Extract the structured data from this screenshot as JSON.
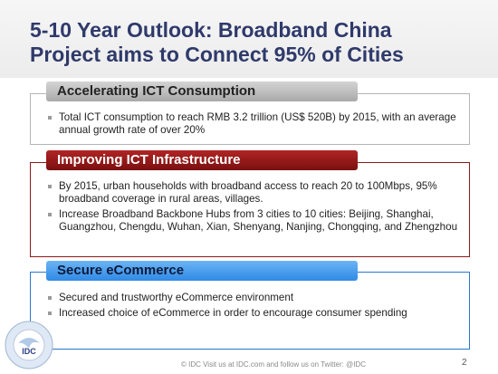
{
  "slide": {
    "title_line1": "5-10 Year Outlook: Broadband China",
    "title_line2": "Project aims to Connect 95% of Cities"
  },
  "sections": [
    {
      "heading": "Accelerating ICT Consumption",
      "bullets": [
        "Total ICT consumption to reach RMB 3.2 trillion (US$ 520B) by 2015, with an average annual growth rate of over 20%"
      ]
    },
    {
      "heading": "Improving ICT Infrastructure",
      "bullets": [
        "By 2015, urban households with broadband access to reach 20 to 100Mbps,  95% broadband coverage in rural areas, villages.",
        "Increase Broadband Backbone Hubs from 3 cities to 10 cities: Beijing, Shanghai, Guangzhou, Chengdu, Wuhan, Xian, Shenyang, Nanjing, Chongqing, and Zhengzhou"
      ]
    },
    {
      "heading": "Secure eCommerce",
      "bullets": [
        "Secured and trustworthy eCommerce environment",
        "Increased choice of eCommerce in order to encourage consumer spending"
      ]
    }
  ],
  "footer": {
    "text": "© IDC   Visit us at IDC.com and follow us on Twitter: @IDC",
    "page_number": "2",
    "logo_text": "IDC",
    "logo_ring_text": "GLOBAL RESEARCH NETWORK"
  },
  "colors": {
    "title": "#2f3a6b",
    "gray_accent": "#b5b5b5",
    "red_accent": "#8b1a1a",
    "blue_accent": "#2b77d0"
  }
}
